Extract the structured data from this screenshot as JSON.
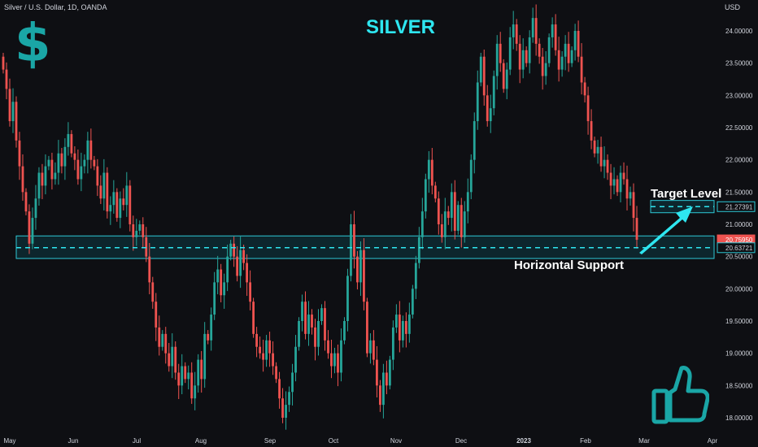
{
  "header": {
    "symbol_line": "Silver / U.S. Dollar, 1D, OANDA",
    "title": "SILVER",
    "currency": "USD",
    "dollar_glyph": "$"
  },
  "annotations": {
    "target_label": "Target Level",
    "support_label": "Horizontal Support"
  },
  "icons": {
    "dollar": "dollar-sign-icon",
    "thumb": "thumbs-up-icon"
  },
  "colors": {
    "background": "#0e0f13",
    "up": "#26a69a",
    "down": "#ef5350",
    "accent": "#2ee6f0",
    "zone_fill": "#0d3a44",
    "zone_border": "#2ec8d6",
    "icon_teal": "#1aa6a6",
    "axis_text": "#d1d4dc"
  },
  "chart_data": {
    "type": "candlestick",
    "title": "SILVER",
    "symbol": "Silver / U.S. Dollar",
    "timeframe": "1D",
    "source": "OANDA",
    "currency": "USD",
    "ylim": [
      17.85,
      24.4
    ],
    "yticks": [
      "24.00000",
      "23.50000",
      "23.00000",
      "22.50000",
      "22.00000",
      "21.50000",
      "21.00000",
      "20.50000",
      "20.00000",
      "19.50000",
      "19.00000",
      "18.50000",
      "18.00000"
    ],
    "ytick_values": [
      24.0,
      23.5,
      23.0,
      22.5,
      22.0,
      21.5,
      21.0,
      20.5,
      20.0,
      19.5,
      19.0,
      18.5,
      18.0
    ],
    "xlabels": [
      "May",
      "Jun",
      "Jul",
      "Aug",
      "Sep",
      "Oct",
      "Nov",
      "Dec",
      "2023",
      "Feb",
      "Mar",
      "Apr"
    ],
    "grid": false,
    "price_labels": [
      {
        "text": "21.27391",
        "value": 21.27391,
        "style": "target"
      },
      {
        "text": "20.75950",
        "value": 20.7595,
        "style": "last"
      },
      {
        "text": "20.63721",
        "value": 20.63721,
        "style": "support"
      }
    ],
    "support_zone": {
      "low": 20.47,
      "high": 20.82
    },
    "support_line": 20.63721,
    "target_line": 21.27391,
    "target_box": {
      "low": 21.18,
      "high": 21.37
    },
    "closes": [
      23.4,
      23.1,
      22.6,
      22.9,
      22.3,
      21.9,
      21.5,
      21.2,
      20.7,
      21.1,
      21.4,
      21.8,
      21.6,
      21.9,
      22.0,
      21.7,
      21.8,
      22.1,
      21.9,
      22.2,
      22.4,
      22.1,
      22.0,
      21.7,
      21.9,
      22.0,
      22.3,
      22.0,
      21.9,
      21.6,
      21.4,
      21.8,
      21.2,
      21.3,
      21.5,
      21.1,
      21.4,
      21.3,
      21.6,
      21.0,
      20.8,
      20.9,
      21.0,
      20.8,
      20.5,
      20.1,
      19.8,
      19.4,
      19.1,
      19.3,
      19.0,
      18.8,
      19.1,
      18.7,
      18.5,
      18.8,
      18.6,
      18.7,
      18.3,
      18.5,
      18.9,
      18.6,
      19.3,
      19.2,
      19.6,
      20.1,
      20.3,
      19.9,
      20.1,
      20.5,
      20.7,
      20.5,
      20.2,
      20.6,
      20.4,
      20.1,
      19.8,
      19.3,
      19.1,
      19.0,
      18.9,
      19.2,
      19.0,
      18.8,
      18.6,
      18.3,
      18.0,
      18.2,
      18.4,
      18.7,
      19.1,
      19.5,
      19.8,
      19.3,
      19.6,
      19.4,
      19.1,
      19.5,
      19.7,
      19.2,
      19.0,
      18.8,
      19.0,
      18.7,
      19.2,
      19.5,
      20.2,
      21.0,
      20.5,
      20.1,
      20.6,
      19.8,
      19.0,
      19.2,
      18.9,
      18.5,
      18.2,
      18.7,
      18.5,
      18.9,
      19.4,
      19.6,
      19.2,
      19.5,
      19.3,
      19.6,
      20.0,
      20.4,
      20.8,
      21.2,
      21.7,
      22.0,
      21.6,
      21.4,
      21.0,
      20.8,
      21.2,
      21.1,
      21.5,
      20.9,
      21.3,
      20.8,
      21.2,
      21.5,
      22.0,
      22.6,
      23.2,
      23.6,
      23.0,
      22.6,
      22.8,
      23.3,
      23.8,
      23.5,
      23.1,
      23.4,
      23.9,
      24.1,
      23.8,
      23.4,
      23.7,
      23.5,
      23.9,
      24.2,
      23.8,
      23.6,
      23.3,
      23.5,
      23.9,
      24.1,
      23.7,
      23.4,
      23.6,
      23.8,
      23.5,
      23.7,
      24.0,
      23.6,
      23.2,
      23.0,
      22.6,
      22.3,
      22.1,
      22.2,
      21.9,
      22.0,
      21.8,
      21.6,
      21.7,
      21.5,
      21.8,
      21.7,
      21.4,
      21.5,
      21.1,
      20.76
    ]
  }
}
